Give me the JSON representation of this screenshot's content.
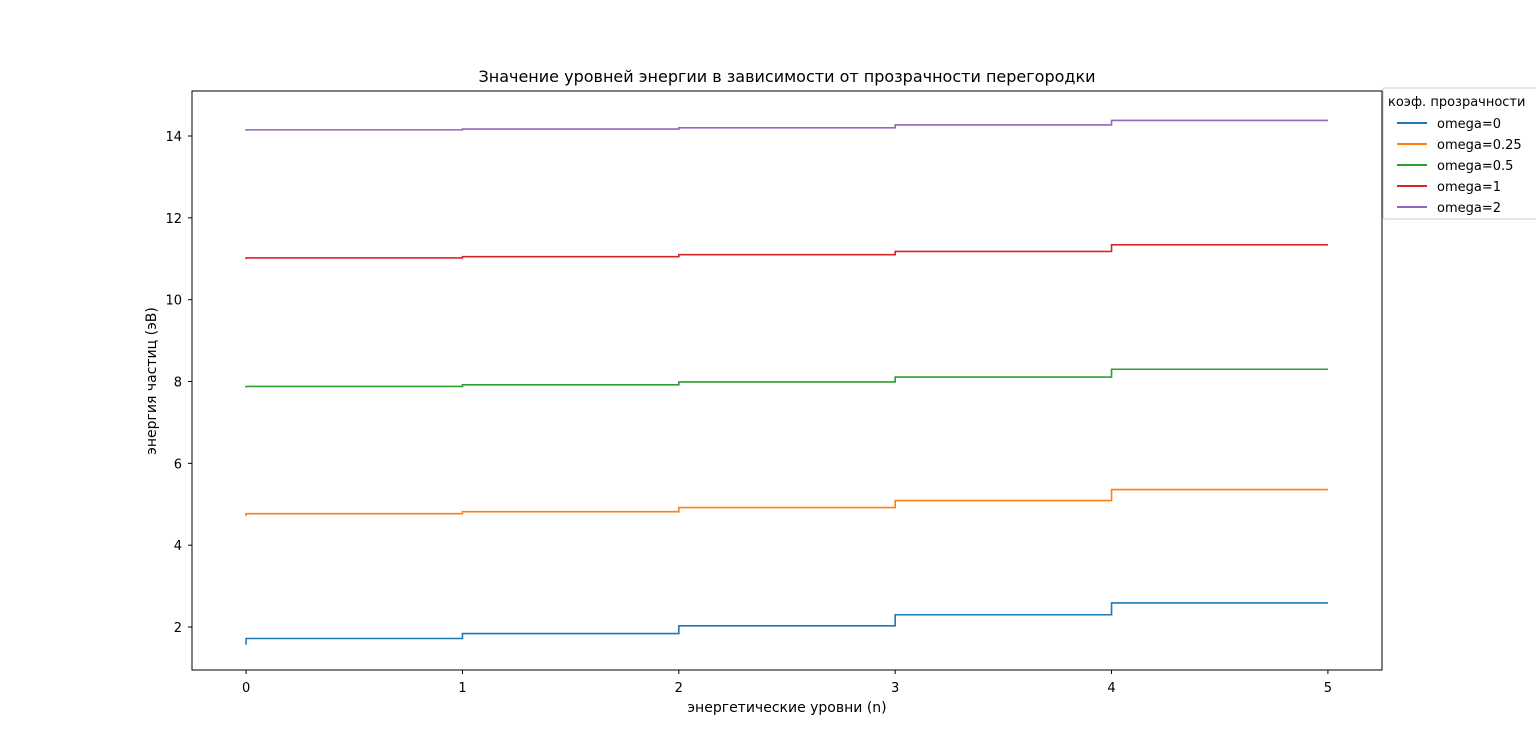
{
  "chart_data": {
    "type": "line",
    "drawstyle": "steps-pre",
    "title": "Значение уровней энергии в зависимости от прозрачности перегородки",
    "xlabel": "энергетические уровни (n)",
    "ylabel": "энергия частиц (эВ)",
    "xlim": [
      -0.25,
      5.25
    ],
    "ylim": [
      0.95,
      15.1
    ],
    "x_ticks": [
      0,
      1,
      2,
      3,
      4,
      5
    ],
    "y_ticks": [
      2,
      4,
      6,
      8,
      10,
      12,
      14
    ],
    "x": [
      0,
      1,
      2,
      3,
      4,
      5
    ],
    "grid": false,
    "legend": {
      "title": "коэф. прозрачности",
      "placement": "top-right, outside plot"
    },
    "series": [
      {
        "name": "omega=0",
        "color": "#1f77b4",
        "values": [
          1.57,
          1.72,
          1.84,
          2.03,
          2.3,
          2.59
        ]
      },
      {
        "name": "omega=0.25",
        "color": "#ff7f0e",
        "values": [
          4.71,
          4.77,
          4.82,
          4.92,
          5.09,
          5.36
        ]
      },
      {
        "name": "omega=0.5",
        "color": "#2ca02c",
        "values": [
          7.85,
          7.88,
          7.92,
          7.99,
          8.11,
          8.3
        ]
      },
      {
        "name": "omega=1",
        "color": "#d62728",
        "values": [
          10.99,
          11.02,
          11.05,
          11.1,
          11.18,
          11.34
        ]
      },
      {
        "name": "omega=2",
        "color": "#9467bd",
        "values": [
          14.13,
          14.15,
          14.17,
          14.2,
          14.27,
          14.38
        ]
      }
    ]
  }
}
